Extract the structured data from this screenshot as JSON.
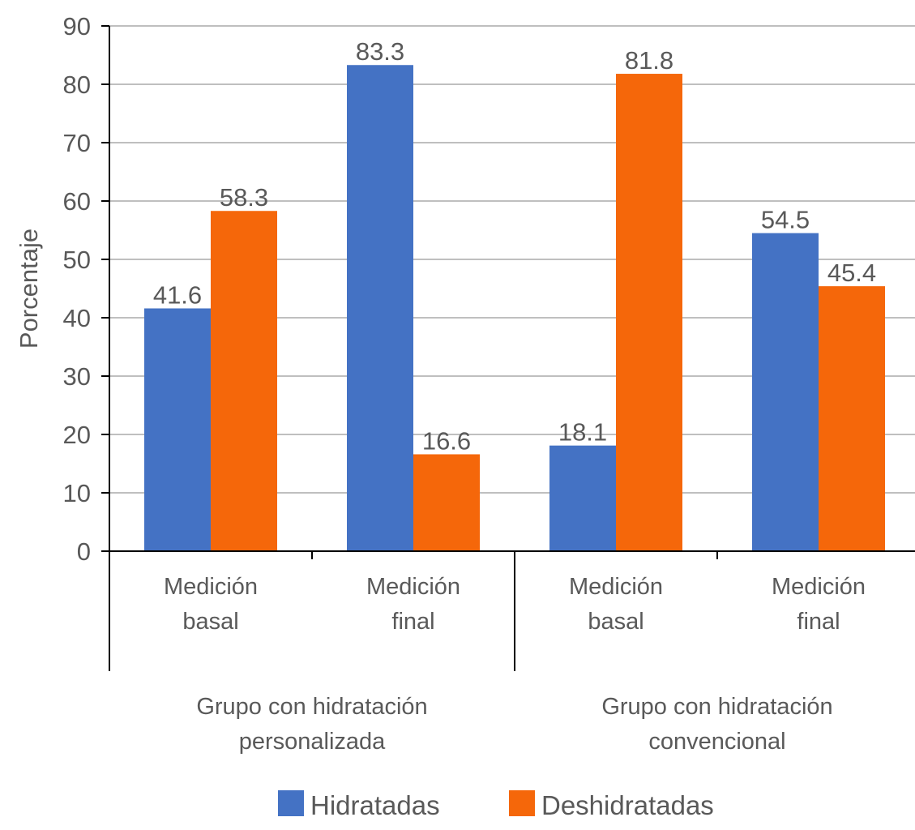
{
  "chart_data": {
    "type": "bar",
    "title": "",
    "ylabel": "Porcentaje",
    "xlabel": "",
    "ylim": [
      0,
      90
    ],
    "yticks": [
      0,
      10,
      20,
      30,
      40,
      50,
      60,
      70,
      80,
      90
    ],
    "grid": true,
    "legend_position": "bottom",
    "groups": [
      {
        "label": [
          "Grupo con hidratación",
          "personalizada"
        ],
        "categories": [
          0,
          1
        ]
      },
      {
        "label": [
          "Grupo con hidratación",
          "convencional"
        ],
        "categories": [
          2,
          3
        ]
      }
    ],
    "categories": [
      [
        "Medición",
        "basal"
      ],
      [
        "Medición",
        "final"
      ],
      [
        "Medición",
        "basal"
      ],
      [
        "Medición",
        "final"
      ]
    ],
    "series": [
      {
        "name": "Hidratadas",
        "color": "#4472C4",
        "values": [
          41.6,
          83.3,
          18.1,
          54.5
        ]
      },
      {
        "name": "Deshidratadas",
        "color": "#F5670A",
        "values": [
          58.3,
          16.6,
          81.8,
          45.4
        ]
      }
    ]
  }
}
